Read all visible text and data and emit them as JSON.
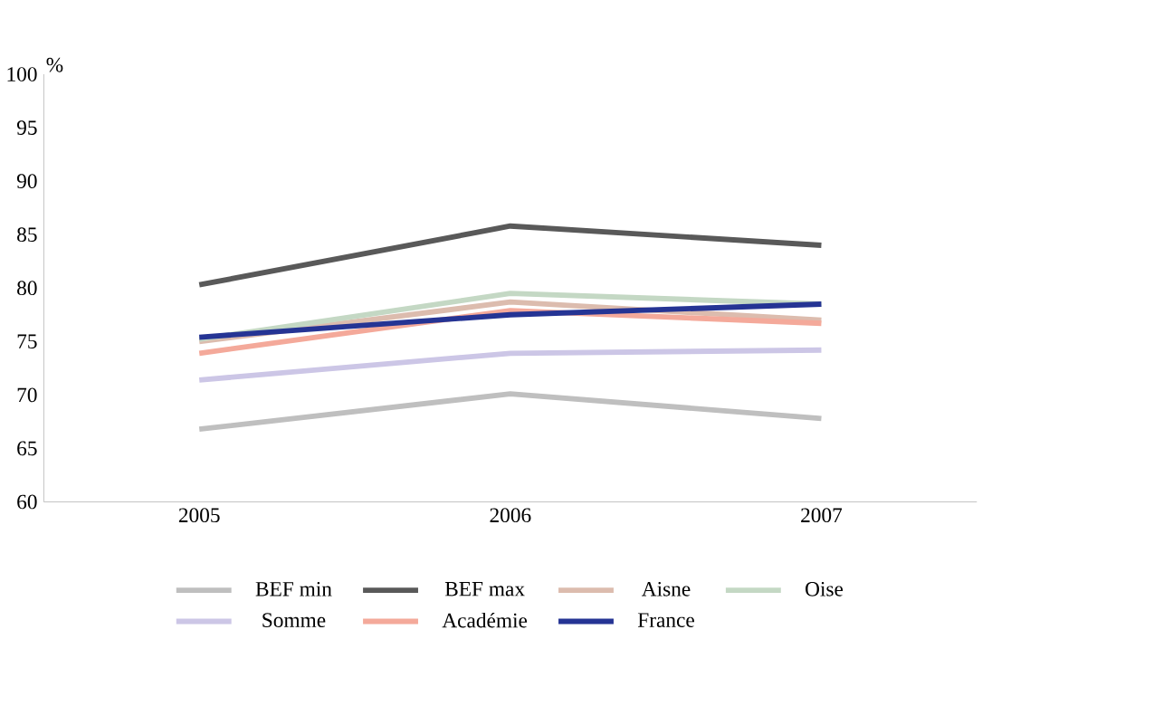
{
  "chart_data": {
    "type": "line",
    "ylabel": "%",
    "categories": [
      "2005",
      "2006",
      "2007"
    ],
    "ylim": [
      60,
      100
    ],
    "yticks": [
      60,
      65,
      70,
      75,
      80,
      85,
      90,
      95,
      100
    ],
    "legend": "bottom",
    "line_style": "solid",
    "series": [
      {
        "name": "BEF min",
        "color": "#bfbfbf",
        "values": [
          66.8,
          70.1,
          67.8
        ]
      },
      {
        "name": "BEF max",
        "color": "#595959",
        "values": [
          80.3,
          85.8,
          84.0
        ]
      },
      {
        "name": "Aisne",
        "color": "#dcbcae",
        "values": [
          75.0,
          78.7,
          77.0
        ]
      },
      {
        "name": "Oise",
        "color": "#c4d8c4",
        "values": [
          75.2,
          79.5,
          78.5
        ]
      },
      {
        "name": "Somme",
        "color": "#ccc6e6",
        "values": [
          71.4,
          73.9,
          74.2
        ]
      },
      {
        "name": "Académie",
        "color": "#f4a99a",
        "values": [
          73.9,
          77.9,
          76.7
        ]
      },
      {
        "name": "France",
        "color": "#253494",
        "values": [
          75.4,
          77.5,
          78.5
        ]
      }
    ]
  }
}
